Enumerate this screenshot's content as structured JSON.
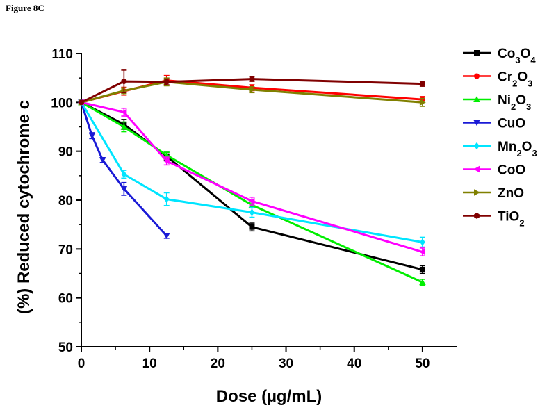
{
  "figure_label": "Figure 8C",
  "chart_data": {
    "type": "line",
    "title": "",
    "xlabel": "Dose (µg/mL)",
    "ylabel": "(%) Reduced cytochrome c",
    "xlim": [
      0,
      55
    ],
    "ylim": [
      50,
      110
    ],
    "xticks": [
      0,
      10,
      20,
      30,
      40,
      50
    ],
    "yticks": [
      50,
      60,
      70,
      80,
      90,
      100,
      110
    ],
    "grid": false,
    "legend_position": "right",
    "series": [
      {
        "name": "Co3O4",
        "label_base": [
          "Co",
          "O"
        ],
        "label_sub": [
          "3",
          "4"
        ],
        "color": "#000000",
        "marker": "square",
        "x": [
          0,
          6.25,
          12.5,
          25,
          50
        ],
        "y": [
          100,
          95.5,
          89.0,
          74.5,
          65.8
        ],
        "err": [
          0,
          1.0,
          0.8,
          0.8,
          0.8
        ]
      },
      {
        "name": "Cr2O3",
        "label_base": [
          "Cr",
          "O"
        ],
        "label_sub": [
          "2",
          "3"
        ],
        "color": "#ff0000",
        "marker": "circle",
        "x": [
          0,
          6.25,
          12.5,
          25,
          50
        ],
        "y": [
          100,
          102.3,
          104.5,
          103.0,
          100.6
        ],
        "err": [
          0,
          0.8,
          1.0,
          0.6,
          0.6
        ]
      },
      {
        "name": "Ni2O3",
        "label_base": [
          "Ni",
          "O"
        ],
        "label_sub": [
          "2",
          "3"
        ],
        "color": "#00ee00",
        "marker": "triangle-up",
        "x": [
          0,
          6.25,
          12.5,
          25,
          50
        ],
        "y": [
          100,
          95.0,
          89.2,
          79.0,
          63.2
        ],
        "err": [
          0,
          1.0,
          0.6,
          0.6,
          0.6
        ]
      },
      {
        "name": "CuO",
        "label_base": [
          "CuO"
        ],
        "label_sub": [],
        "color": "#1a1ad6",
        "marker": "triangle-down",
        "x": [
          0,
          1.5625,
          3.125,
          6.25,
          12.5
        ],
        "y": [
          100,
          93.2,
          88.2,
          82.3,
          72.7
        ],
        "err": [
          0,
          0.6,
          0.5,
          1.3,
          0.5
        ]
      },
      {
        "name": "Mn2O3",
        "label_base": [
          "Mn",
          "O"
        ],
        "label_sub": [
          "2",
          "3"
        ],
        "color": "#00e5ff",
        "marker": "diamond",
        "x": [
          0,
          6.25,
          12.5,
          25,
          50
        ],
        "y": [
          100,
          85.3,
          80.2,
          77.5,
          71.4
        ],
        "err": [
          0,
          0.8,
          1.3,
          1.0,
          1.0
        ]
      },
      {
        "name": "CoO",
        "label_base": [
          "CoO"
        ],
        "label_sub": [],
        "color": "#ff00ff",
        "marker": "triangle-left",
        "x": [
          0,
          6.25,
          12.5,
          25,
          50
        ],
        "y": [
          100,
          98.0,
          88.0,
          79.8,
          69.4
        ],
        "err": [
          0,
          0.8,
          0.8,
          0.8,
          0.8
        ]
      },
      {
        "name": "ZnO",
        "label_base": [
          "ZnO"
        ],
        "label_sub": [],
        "color": "#808000",
        "marker": "triangle-right",
        "x": [
          0,
          6.25,
          12.5,
          25,
          50
        ],
        "y": [
          100,
          102.4,
          104.2,
          102.6,
          100.0
        ],
        "err": [
          0,
          0.6,
          0.8,
          0.6,
          0.8
        ]
      },
      {
        "name": "TiO2",
        "label_base": [
          "Ti",
          "O"
        ],
        "label_sub": [
          "",
          "2"
        ],
        "color": "#800000",
        "marker": "hexagon",
        "x": [
          0,
          6.25,
          12.5,
          25,
          50
        ],
        "y": [
          100,
          104.3,
          104.2,
          104.8,
          103.8
        ],
        "err": [
          0,
          2.3,
          0.6,
          0.5,
          0.5
        ]
      }
    ]
  }
}
